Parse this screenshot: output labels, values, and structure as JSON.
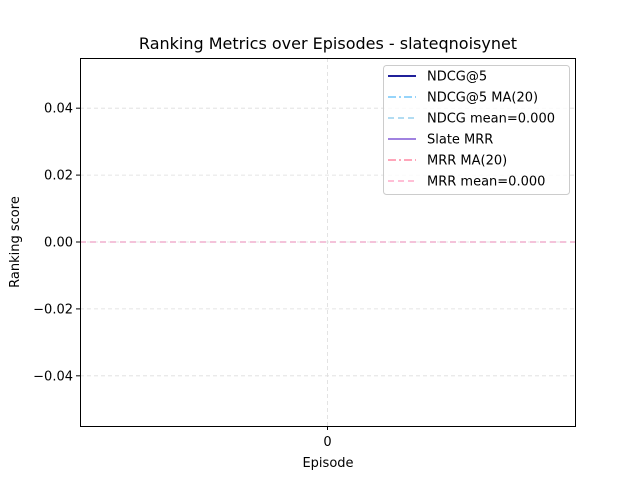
{
  "chart_data": {
    "type": "line",
    "title": "Ranking Metrics over Episodes - slateqnoisynet",
    "xlabel": "Episode",
    "ylabel": "Ranking score",
    "x": [
      0
    ],
    "xticks": [
      "0"
    ],
    "yticks": [
      0.04,
      0.02,
      0.0,
      -0.02,
      -0.04
    ],
    "ytick_labels": [
      "0.04",
      "0.02",
      "0.00",
      "−0.02",
      "−0.04"
    ],
    "xlim": [
      -0.055,
      0.055
    ],
    "ylim": [
      -0.055,
      0.055
    ],
    "grid": true,
    "legend_position": "top-right",
    "series": [
      {
        "name": "NDCG@5",
        "values": [
          0.0
        ],
        "color": "#00008b",
        "style": "solid"
      },
      {
        "name": "NDCG@5 MA(20)",
        "values": [
          0.0
        ],
        "color": "#87cefa",
        "style": "dashdot"
      },
      {
        "name": "NDCG mean=0.000",
        "values": [
          0.0
        ],
        "color": "#a8d8f0",
        "style": "dashed"
      },
      {
        "name": "Slate MRR",
        "values": [
          0.0
        ],
        "color": "#9370db",
        "style": "solid"
      },
      {
        "name": "MRR MA(20)",
        "values": [
          0.0
        ],
        "color": "#ff9ab0",
        "style": "dashdot"
      },
      {
        "name": "MRR mean=0.000",
        "values": [
          0.0
        ],
        "color": "#ffb6d0",
        "style": "dashed"
      }
    ]
  }
}
